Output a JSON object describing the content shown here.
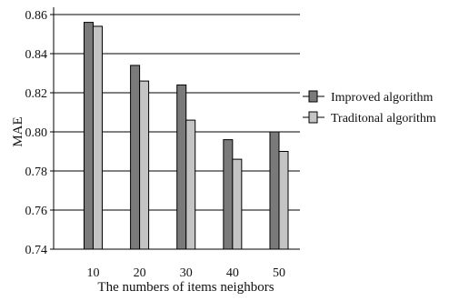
{
  "chart_data": {
    "type": "bar",
    "xlabel": "The numbers of items neighbors",
    "ylabel": "MAE",
    "categories": [
      "10",
      "20",
      "30",
      "40",
      "50"
    ],
    "series": [
      {
        "name": "Improved algorithm",
        "values": [
          0.856,
          0.834,
          0.824,
          0.796,
          0.8
        ],
        "color": "#7a7a7a"
      },
      {
        "name": "Traditonal algorithm",
        "values": [
          0.854,
          0.826,
          0.806,
          0.786,
          0.79
        ],
        "color": "#c4c4c4"
      }
    ],
    "ylim": [
      0.74,
      0.86
    ],
    "yticks": [
      "0.74",
      "0.76",
      "0.78",
      "0.80",
      "0.82",
      "0.84",
      "0.86"
    ],
    "grid": true,
    "legend_position": "right"
  }
}
